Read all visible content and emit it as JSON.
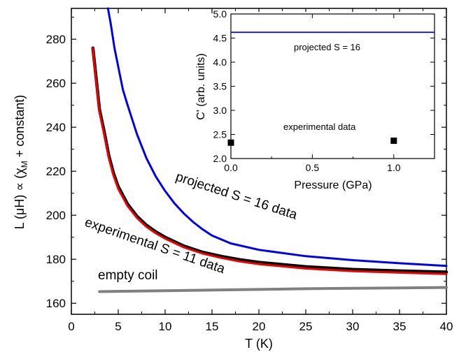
{
  "chart_data": [
    {
      "type": "line",
      "xlabel": "T (K)",
      "ylabel_parts": [
        "L (",
        "μ",
        "H) ∝ (χ",
        "M",
        " + constant)"
      ],
      "xlim": [
        0,
        40
      ],
      "ylim": [
        155,
        294
      ],
      "x_ticks": [
        0,
        5,
        10,
        15,
        20,
        25,
        30,
        35,
        40
      ],
      "y_ticks": [
        160,
        180,
        200,
        220,
        240,
        260,
        280
      ],
      "annotations": {
        "projected": "projected S = 16 data",
        "experimental": "experimental S = 11 data",
        "empty": "empty coil"
      },
      "series": [
        {
          "key": "projected",
          "color": "#0000ee",
          "x": [
            3.9,
            4.2,
            4.6,
            5,
            5.5,
            6,
            7,
            8,
            9,
            10,
            11,
            12,
            13,
            14,
            15,
            17,
            20,
            25,
            30,
            35,
            40
          ],
          "y": [
            294,
            287,
            276,
            267.5,
            257,
            250,
            236.8,
            226,
            217.6,
            211,
            205.4,
            200.8,
            196.9,
            193.6,
            190.8,
            187.2,
            184.3,
            181.4,
            179.6,
            178.2,
            177
          ]
        },
        {
          "key": "experimental",
          "color": "#000000",
          "x": [
            2.3,
            2.5,
            3,
            3.5,
            4,
            4.5,
            5,
            6,
            7,
            8,
            9,
            10,
            12,
            14,
            16,
            18,
            20,
            25,
            30,
            35,
            40
          ],
          "y": [
            276,
            268,
            248,
            238,
            227,
            219,
            213,
            205,
            199.5,
            195.5,
            192.5,
            190,
            186,
            183.2,
            181.3,
            179.8,
            178.6,
            176.6,
            175.4,
            174.7,
            174.2
          ]
        },
        {
          "key": "experimental-fit",
          "color": "#ee0000",
          "x": [
            2.3,
            2.5,
            3,
            3.5,
            4,
            4.5,
            5,
            6,
            7,
            8,
            9,
            10,
            12,
            14,
            16,
            18,
            20,
            25,
            30,
            35,
            40
          ],
          "y": [
            276,
            267,
            247,
            237,
            226,
            218,
            212,
            204.2,
            198.8,
            194.8,
            191.8,
            189.4,
            185.4,
            182.6,
            180.6,
            179,
            177.8,
            175.8,
            174.6,
            173.9,
            173.3
          ]
        },
        {
          "key": "empty",
          "color": "#808080",
          "x": [
            3,
            10,
            20,
            25,
            30,
            35,
            40
          ],
          "y": [
            165.3,
            165.7,
            166.3,
            166.6,
            166.8,
            167,
            167.2
          ]
        }
      ]
    },
    {
      "type": "scatter",
      "xlabel": "Pressure (GPa)",
      "ylabel": "C' (arb. units)",
      "xlim": [
        0,
        1.25
      ],
      "ylim": [
        2.0,
        5.0
      ],
      "x_ticks": [
        0.0,
        0.5,
        1.0
      ],
      "x_tick_labels": [
        "0.0",
        "0.5",
        "1.0"
      ],
      "y_ticks": [
        2.0,
        2.5,
        3.0,
        3.5,
        4.0,
        4.5,
        5.0
      ],
      "y_tick_labels": [
        "2.0",
        "2.5",
        "3.0",
        "3.5",
        "4.0",
        "4.5",
        "5.0"
      ],
      "projected_line": {
        "value": 4.62,
        "color": "#0000ee",
        "label": "projected S = 16"
      },
      "points": {
        "x": [
          0.0,
          1.0
        ],
        "y": [
          2.33,
          2.37
        ],
        "label": "experimental data",
        "color": "#000000"
      }
    }
  ]
}
